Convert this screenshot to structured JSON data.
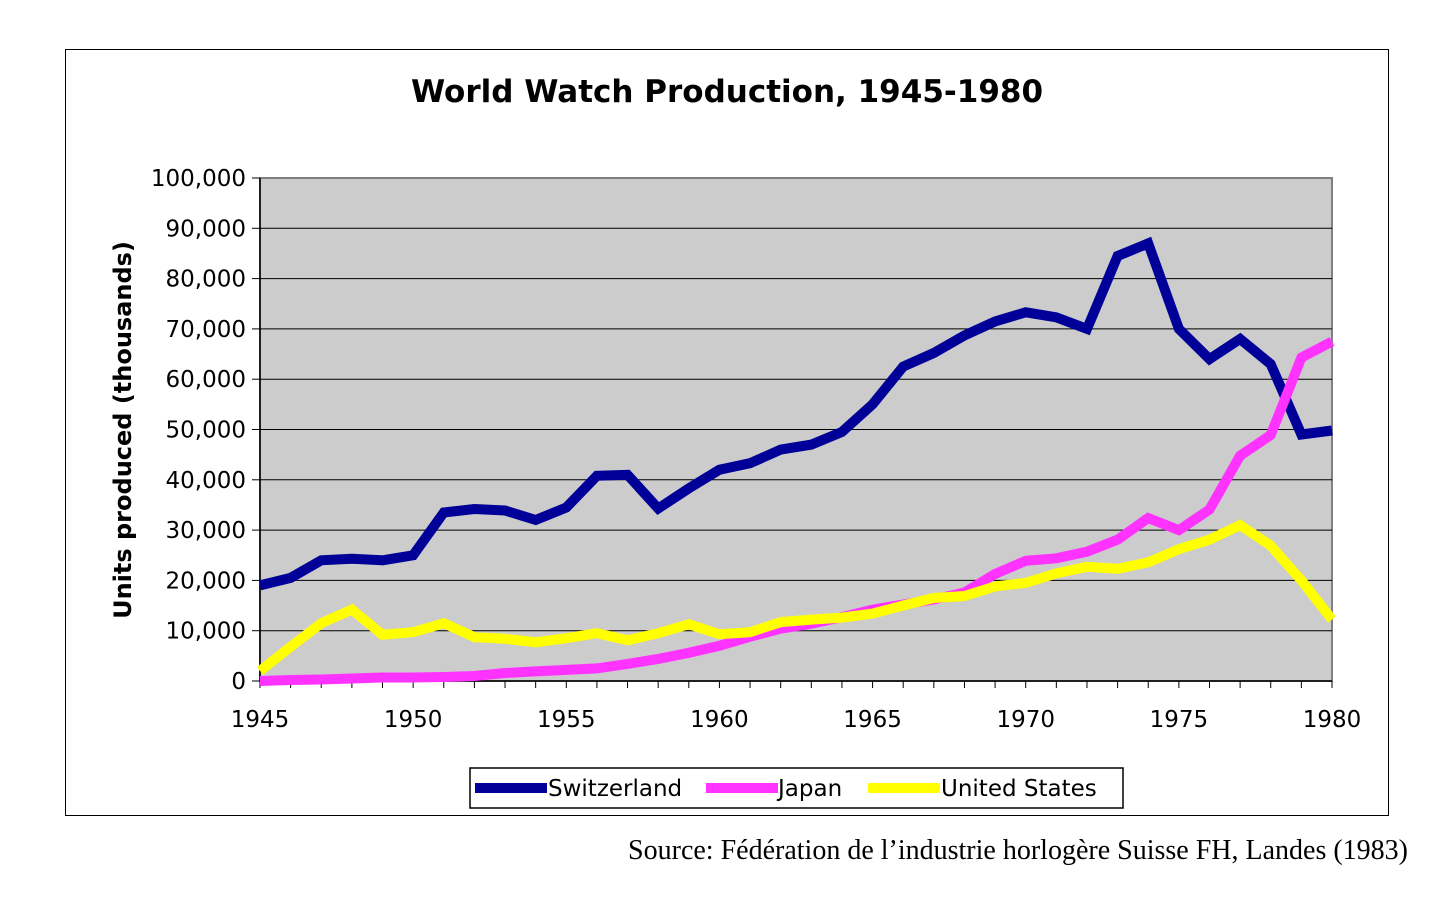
{
  "chart_data": {
    "type": "line",
    "title": "World Watch Production, 1945-1980",
    "xlabel": "",
    "ylabel": "Units produced (thousands)",
    "xlim": [
      1945,
      1980
    ],
    "ylim": [
      0,
      100000
    ],
    "x_ticks": [
      "1945",
      "1950",
      "1955",
      "1960",
      "1965",
      "1970",
      "1975",
      "1980"
    ],
    "y_ticks": [
      "0",
      "10,000",
      "20,000",
      "30,000",
      "40,000",
      "50,000",
      "60,000",
      "70,000",
      "80,000",
      "90,000",
      "100,000"
    ],
    "grid": "horizontal",
    "legend_position": "bottom",
    "x": [
      1945,
      1946,
      1947,
      1948,
      1949,
      1950,
      1951,
      1952,
      1953,
      1954,
      1955,
      1956,
      1957,
      1958,
      1959,
      1960,
      1961,
      1962,
      1963,
      1964,
      1965,
      1966,
      1967,
      1968,
      1969,
      1970,
      1971,
      1972,
      1973,
      1974,
      1975,
      1976,
      1977,
      1978,
      1979,
      1980
    ],
    "series": [
      {
        "name": "Switzerland",
        "color": "#000099",
        "values": [
          19000,
          20500,
          24000,
          24300,
          24000,
          25000,
          33500,
          34200,
          33900,
          32000,
          34500,
          40800,
          41000,
          34300,
          38300,
          42000,
          43300,
          46000,
          47000,
          49500,
          55000,
          62500,
          65200,
          68700,
          71500,
          73300,
          72300,
          70000,
          84500,
          87000,
          70000,
          64000,
          68000,
          63000,
          49000,
          49800
        ]
      },
      {
        "name": "Japan",
        "color": "#ff33ff",
        "values": [
          0,
          200,
          300,
          500,
          700,
          700,
          800,
          1000,
          1600,
          1900,
          2200,
          2500,
          3400,
          4400,
          5600,
          7000,
          8800,
          10400,
          11400,
          12700,
          14200,
          15200,
          16200,
          17600,
          21300,
          23900,
          24400,
          25700,
          28100,
          32400,
          30000,
          34100,
          44800,
          48900,
          64300,
          67500
        ]
      },
      {
        "name": "United States",
        "color": "#ffff00",
        "values": [
          2000,
          6800,
          11500,
          14200,
          9200,
          9700,
          11500,
          8700,
          8400,
          7700,
          8500,
          9500,
          8100,
          9500,
          11300,
          9300,
          9700,
          11700,
          12200,
          12600,
          13400,
          15000,
          16500,
          16900,
          18800,
          19500,
          21400,
          22700,
          22300,
          23600,
          26200,
          28100,
          31000,
          26900,
          20000,
          12200
        ]
      }
    ]
  },
  "source_note": "Source: Fédération de l’industrie horlogère Suisse FH, Landes (1983)"
}
